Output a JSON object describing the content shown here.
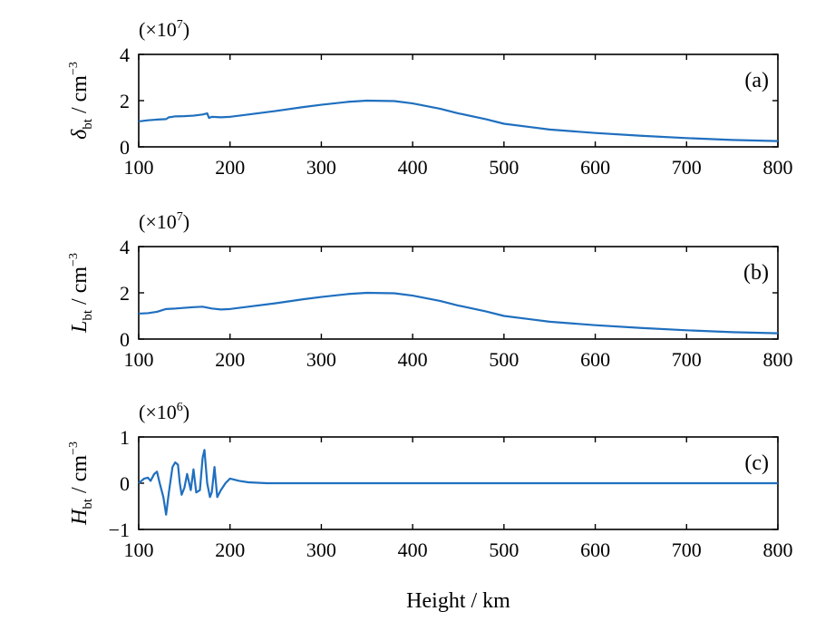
{
  "chart_data": {
    "type": "line",
    "xlabel": "Height / km",
    "line_color": "#1f6fbf",
    "panels": [
      {
        "label": "(a)",
        "scale_prefix": "(×10",
        "scale_exp": "7",
        "scale_suffix": ")",
        "ylabel_sym": "δ",
        "ylabel_sub": "bt",
        "ylabel_unit": " / cm",
        "ylabel_exp": "−3",
        "xlim": [
          100,
          800
        ],
        "ylim": [
          0,
          4
        ],
        "xticks": [
          "100",
          "200",
          "300",
          "400",
          "500",
          "600",
          "700",
          "800"
        ],
        "yticks": [
          "0",
          "2",
          "4"
        ],
        "x": [
          100,
          110,
          120,
          130,
          133,
          137,
          140,
          150,
          160,
          170,
          175,
          177,
          180,
          190,
          200,
          220,
          250,
          280,
          300,
          330,
          350,
          380,
          400,
          430,
          450,
          480,
          500,
          530,
          550,
          600,
          650,
          700,
          750,
          800
        ],
        "y": [
          1.1,
          1.15,
          1.18,
          1.2,
          1.28,
          1.3,
          1.32,
          1.33,
          1.35,
          1.4,
          1.45,
          1.25,
          1.3,
          1.28,
          1.3,
          1.4,
          1.55,
          1.72,
          1.82,
          1.95,
          2.0,
          1.98,
          1.88,
          1.65,
          1.45,
          1.2,
          1.0,
          0.85,
          0.75,
          0.6,
          0.48,
          0.38,
          0.3,
          0.25
        ]
      },
      {
        "label": "(b)",
        "scale_prefix": "(×10",
        "scale_exp": "7",
        "scale_suffix": ")",
        "ylabel_sym": "L",
        "ylabel_sub": "bt",
        "ylabel_unit": " / cm",
        "ylabel_exp": "−3",
        "xlim": [
          100,
          800
        ],
        "ylim": [
          0,
          4
        ],
        "xticks": [
          "100",
          "200",
          "300",
          "400",
          "500",
          "600",
          "700",
          "800"
        ],
        "yticks": [
          "0",
          "2",
          "4"
        ],
        "x": [
          100,
          110,
          120,
          130,
          140,
          150,
          160,
          170,
          180,
          190,
          200,
          220,
          250,
          280,
          300,
          330,
          350,
          380,
          400,
          430,
          450,
          480,
          500,
          530,
          550,
          600,
          650,
          700,
          750,
          800
        ],
        "y": [
          1.1,
          1.12,
          1.18,
          1.3,
          1.32,
          1.35,
          1.38,
          1.4,
          1.32,
          1.28,
          1.3,
          1.4,
          1.55,
          1.72,
          1.82,
          1.95,
          2.0,
          1.98,
          1.88,
          1.65,
          1.45,
          1.2,
          1.0,
          0.85,
          0.75,
          0.6,
          0.48,
          0.38,
          0.3,
          0.25
        ]
      },
      {
        "label": "(c)",
        "scale_prefix": "(×10",
        "scale_exp": "6",
        "scale_suffix": ")",
        "ylabel_sym": "H",
        "ylabel_sub": "bt",
        "ylabel_unit": " / cm",
        "ylabel_exp": "−3",
        "xlim": [
          100,
          800
        ],
        "ylim": [
          -1,
          1
        ],
        "xticks": [
          "100",
          "200",
          "300",
          "400",
          "500",
          "600",
          "700",
          "800"
        ],
        "yticks": [
          "−1",
          "0",
          "1"
        ],
        "x": [
          100,
          103,
          106,
          110,
          113,
          117,
          120,
          123,
          127,
          130,
          133,
          137,
          140,
          143,
          145,
          147,
          150,
          153,
          157,
          160,
          163,
          167,
          170,
          172,
          175,
          178,
          180,
          183,
          186,
          190,
          195,
          200,
          210,
          220,
          240,
          300,
          400,
          500,
          600,
          700,
          800
        ],
        "y": [
          0,
          0.05,
          0.1,
          0.12,
          0.05,
          0.2,
          0.25,
          0.0,
          -0.3,
          -0.68,
          -0.2,
          0.35,
          0.45,
          0.4,
          0.0,
          -0.25,
          -0.1,
          0.2,
          -0.15,
          0.3,
          -0.2,
          -0.15,
          0.55,
          0.72,
          0.0,
          -0.3,
          -0.2,
          0.35,
          -0.3,
          -0.15,
          0.0,
          0.1,
          0.05,
          0.02,
          0.0,
          0.0,
          0.0,
          0.0,
          0.0,
          0.0,
          0.0
        ]
      }
    ]
  }
}
